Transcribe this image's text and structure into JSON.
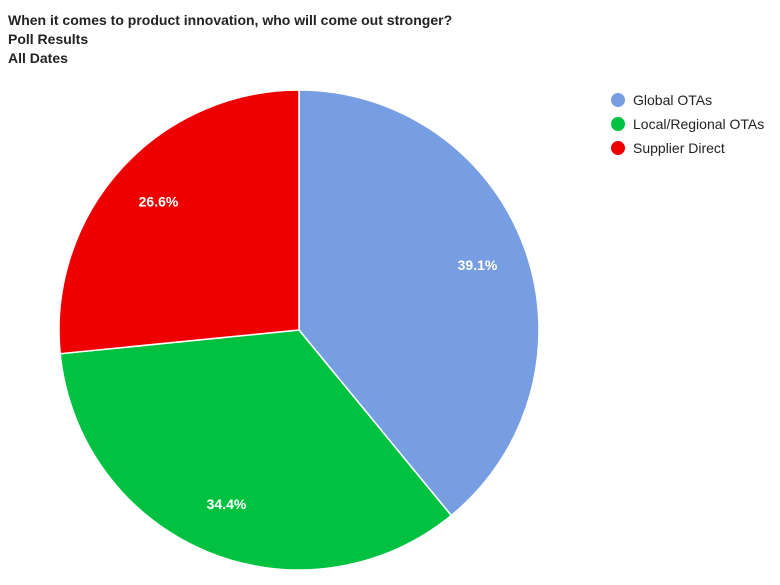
{
  "chart_data": {
    "type": "pie",
    "title": "When it comes to product innovation, who will come out stronger?",
    "subtitle": "Poll Results",
    "subtitle2": "All Dates",
    "legend_position": "top-right",
    "slices": [
      {
        "name": "Global OTAs",
        "value": 39.1,
        "label": "39.1%",
        "color": "#779de3"
      },
      {
        "name": "Local/Regional OTAs",
        "value": 34.4,
        "label": "34.4%",
        "color": "#00c140"
      },
      {
        "name": "Supplier Direct",
        "value": 26.6,
        "label": "26.6%",
        "color": "#ef0000"
      }
    ]
  }
}
